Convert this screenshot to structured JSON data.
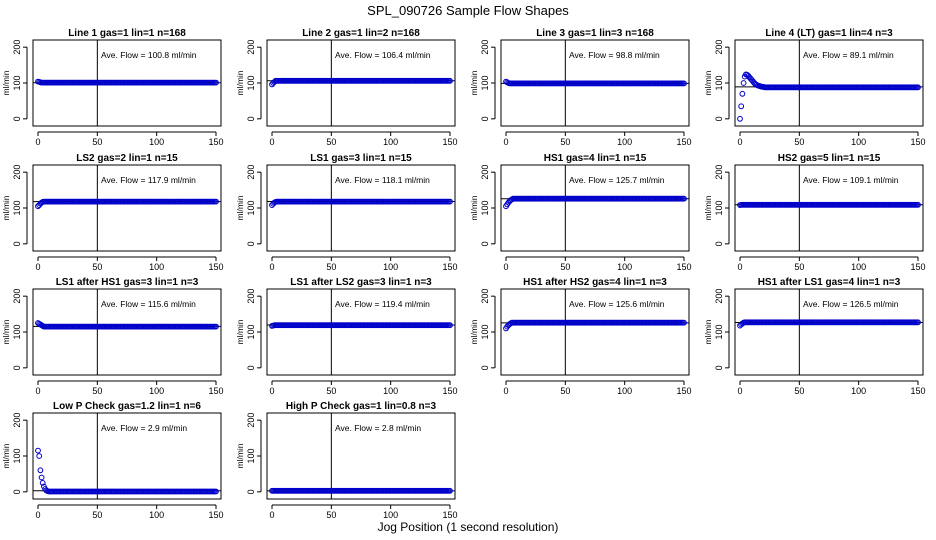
{
  "figure": {
    "title": "SPL_090726  Sample Flow Shapes",
    "xlabel": "Jog Position (1 second resolution)"
  },
  "chart_data": [
    {
      "type": "scatter",
      "title": "Line 1 gas=1 lin=1 n=168",
      "ylabel": "ml/min",
      "annotation": "Ave. Flow =  100.8  ml/min",
      "xlim": [
        0,
        150
      ],
      "ylim": [
        -20,
        220
      ],
      "xticks": [
        0,
        50,
        100,
        150
      ],
      "yticks": [
        0,
        100,
        200
      ],
      "hline": 100.8,
      "vline": 50,
      "steady": 101,
      "transient": [
        104,
        103,
        102
      ]
    },
    {
      "type": "scatter",
      "title": "Line 2 gas=1 lin=2 n=168",
      "ylabel": "ml/min",
      "annotation": "Ave. Flow =  106.4  ml/min",
      "xlim": [
        0,
        150
      ],
      "ylim": [
        -20,
        220
      ],
      "xticks": [
        0,
        50,
        100,
        150
      ],
      "yticks": [
        0,
        100,
        200
      ],
      "hline": 106.4,
      "vline": 50,
      "steady": 106,
      "transient": [
        96,
        100,
        103
      ]
    },
    {
      "type": "scatter",
      "title": "Line 3 gas=1 lin=3 n=168",
      "ylabel": "ml/min",
      "annotation": "Ave. Flow =  98.8  ml/min",
      "xlim": [
        0,
        150
      ],
      "ylim": [
        -20,
        220
      ],
      "xticks": [
        0,
        50,
        100,
        150
      ],
      "yticks": [
        0,
        100,
        200
      ],
      "hline": 98.8,
      "vline": 50,
      "steady": 99,
      "transient": [
        104,
        102,
        100
      ]
    },
    {
      "type": "scatter",
      "title": "Line 4 (LT) gas=1 lin=4 n=3",
      "ylabel": "ml/min",
      "annotation": "Ave. Flow =  89.1  ml/min",
      "xlim": [
        0,
        150
      ],
      "ylim": [
        -20,
        220
      ],
      "xticks": [
        0,
        50,
        100,
        150
      ],
      "yticks": [
        0,
        100,
        200
      ],
      "hline": 89.1,
      "vline": 50,
      "steady": 88,
      "transient": [
        0,
        35,
        70,
        100,
        118,
        124,
        123,
        120,
        116,
        112,
        108,
        104,
        100,
        97,
        95,
        93,
        92,
        91,
        90,
        89,
        89
      ]
    },
    {
      "type": "scatter",
      "title": "LS2 gas=2 lin=1 n=15",
      "ylabel": "ml/min",
      "annotation": "Ave. Flow =  117.9  ml/min",
      "xlim": [
        0,
        150
      ],
      "ylim": [
        -20,
        220
      ],
      "xticks": [
        0,
        50,
        100,
        150
      ],
      "yticks": [
        0,
        100,
        200
      ],
      "hline": 117.9,
      "vline": 50,
      "steady": 118,
      "transient": [
        105,
        108,
        112,
        115,
        117
      ]
    },
    {
      "type": "scatter",
      "title": "LS1 gas=3 lin=1 n=15",
      "ylabel": "ml/min",
      "annotation": "Ave. Flow =  118.1  ml/min",
      "xlim": [
        0,
        150
      ],
      "ylim": [
        -20,
        220
      ],
      "xticks": [
        0,
        50,
        100,
        150
      ],
      "yticks": [
        0,
        100,
        200
      ],
      "hline": 118.1,
      "vline": 50,
      "steady": 118,
      "transient": [
        108,
        112,
        115,
        117
      ]
    },
    {
      "type": "scatter",
      "title": "HS1 gas=4 lin=1 n=15",
      "ylabel": "ml/min",
      "annotation": "Ave. Flow =  125.7  ml/min",
      "xlim": [
        0,
        150
      ],
      "ylim": [
        -20,
        220
      ],
      "xticks": [
        0,
        50,
        100,
        150
      ],
      "yticks": [
        0,
        100,
        200
      ],
      "hline": 125.7,
      "vline": 50,
      "steady": 126,
      "transient": [
        105,
        110,
        115,
        119,
        122,
        124
      ]
    },
    {
      "type": "scatter",
      "title": "HS2 gas=5 lin=1 n=15",
      "ylabel": "ml/min",
      "annotation": "Ave. Flow =  109.1  ml/min",
      "xlim": [
        0,
        150
      ],
      "ylim": [
        -20,
        220
      ],
      "xticks": [
        0,
        50,
        100,
        150
      ],
      "yticks": [
        0,
        100,
        200
      ],
      "hline": 109.1,
      "vline": 50,
      "steady": 109,
      "transient": [
        108,
        109
      ]
    },
    {
      "type": "scatter",
      "title": "LS1 after HS1 gas=3 lin=1 n=3",
      "ylabel": "ml/min",
      "annotation": "Ave. Flow =  115.6  ml/min",
      "xlim": [
        0,
        150
      ],
      "ylim": [
        -20,
        220
      ],
      "xticks": [
        0,
        50,
        100,
        150
      ],
      "yticks": [
        0,
        100,
        200
      ],
      "hline": 115.6,
      "vline": 50,
      "steady": 115,
      "transient": [
        125,
        123,
        121,
        119,
        117
      ]
    },
    {
      "type": "scatter",
      "title": "LS1 after LS2 gas=3 lin=1 n=3",
      "ylabel": "ml/min",
      "annotation": "Ave. Flow =  119.4  ml/min",
      "xlim": [
        0,
        150
      ],
      "ylim": [
        -20,
        220
      ],
      "xticks": [
        0,
        50,
        100,
        150
      ],
      "yticks": [
        0,
        100,
        200
      ],
      "hline": 119.4,
      "vline": 50,
      "steady": 119,
      "transient": [
        117,
        118
      ]
    },
    {
      "type": "scatter",
      "title": "HS1 after HS2 gas=4 lin=1 n=3",
      "ylabel": "ml/min",
      "annotation": "Ave. Flow =  125.6  ml/min",
      "xlim": [
        0,
        150
      ],
      "ylim": [
        -20,
        220
      ],
      "xticks": [
        0,
        50,
        100,
        150
      ],
      "yticks": [
        0,
        100,
        200
      ],
      "hline": 125.6,
      "vline": 50,
      "steady": 126,
      "transient": [
        110,
        115,
        119,
        122,
        124
      ]
    },
    {
      "type": "scatter",
      "title": "HS1 after LS1 gas=4 lin=1 n=3",
      "ylabel": "ml/min",
      "annotation": "Ave. Flow =  126.5  ml/min",
      "xlim": [
        0,
        150
      ],
      "ylim": [
        -20,
        220
      ],
      "xticks": [
        0,
        50,
        100,
        150
      ],
      "yticks": [
        0,
        100,
        200
      ],
      "hline": 126.5,
      "vline": 50,
      "steady": 127,
      "transient": [
        118,
        121,
        124,
        126
      ]
    },
    {
      "type": "scatter",
      "title": "Low P Check gas=1.2 lin=1 n=6",
      "ylabel": "ml/min",
      "annotation": "Ave. Flow =  2.9  ml/min",
      "xlim": [
        0,
        150
      ],
      "ylim": [
        -20,
        220
      ],
      "xticks": [
        0,
        50,
        100,
        150
      ],
      "yticks": [
        0,
        100,
        200
      ],
      "hline": 2.9,
      "vline": 50,
      "steady": 1,
      "transient": [
        115,
        100,
        60,
        40,
        25,
        15,
        8,
        4,
        2
      ]
    },
    {
      "type": "scatter",
      "title": "High P Check gas=1 lin=0.8 n=3",
      "ylabel": "ml/min",
      "annotation": "Ave. Flow =  2.8  ml/min",
      "xlim": [
        0,
        150
      ],
      "ylim": [
        -20,
        220
      ],
      "xticks": [
        0,
        50,
        100,
        150
      ],
      "yticks": [
        0,
        100,
        200
      ],
      "hline": 2.8,
      "vline": 50,
      "steady": 3,
      "transient": [
        3,
        3
      ]
    }
  ],
  "style": {
    "point_color": "#0000cc",
    "line_color": "#000000"
  }
}
